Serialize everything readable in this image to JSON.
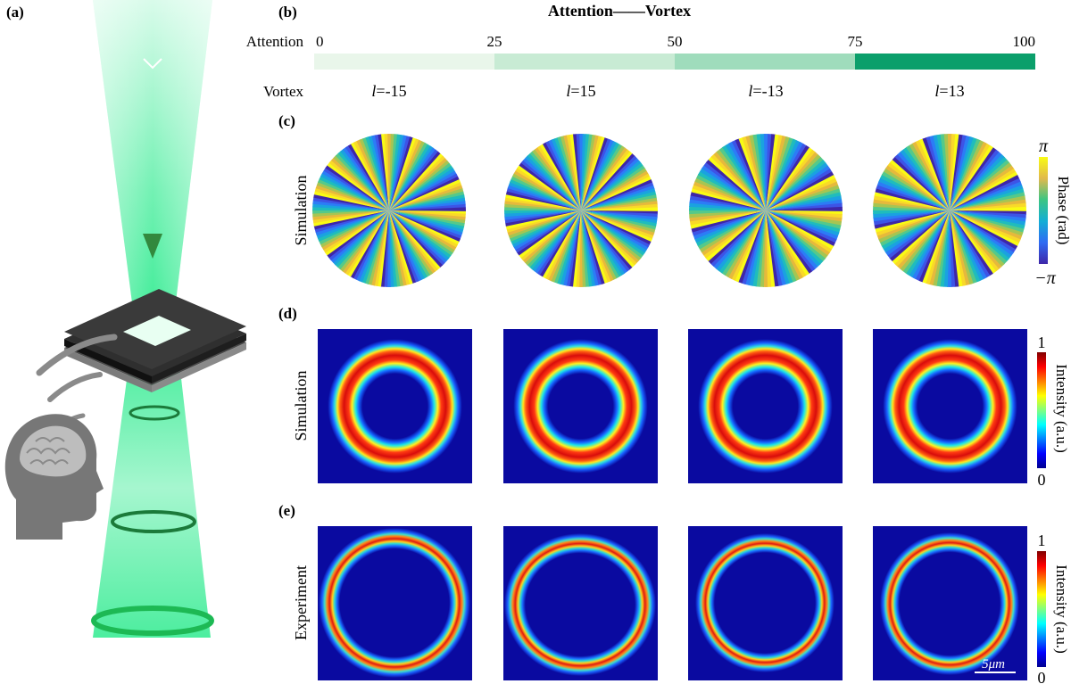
{
  "panel_labels": {
    "a": "(a)",
    "b": "(b)",
    "c": "(c)",
    "d": "(d)",
    "e": "(e)"
  },
  "header": {
    "title": "Attention——Vortex",
    "attention_label": "Attention",
    "vortex_label": "Vortex"
  },
  "attention_scale": {
    "ticks": [
      "0",
      "25",
      "50",
      "75",
      "100"
    ],
    "segment_colors": [
      "#e9f6ea",
      "#c8ebd4",
      "#9fdcbc",
      "#0b9f6b"
    ]
  },
  "vortex_orders": [
    {
      "label": "l=-15",
      "l": -15
    },
    {
      "label": "l=15",
      "l": 15
    },
    {
      "label": "l=-13",
      "l": -13
    },
    {
      "label": "l=13",
      "l": 13
    }
  ],
  "rows": {
    "c": {
      "row_label": "Simulation"
    },
    "d": {
      "row_label": "Simulation"
    },
    "e": {
      "row_label": "Experiment"
    }
  },
  "colorbars": {
    "phase": {
      "label": "Phase (rad)",
      "max": "π",
      "min": "−π"
    },
    "intensity_sim": {
      "label": "Intensity (a.u.)",
      "max": "1",
      "min": "0"
    },
    "intensity_exp": {
      "label": "Intensity (a.u.)",
      "max": "1",
      "min": "0"
    }
  },
  "scale_bar": "5μm"
}
